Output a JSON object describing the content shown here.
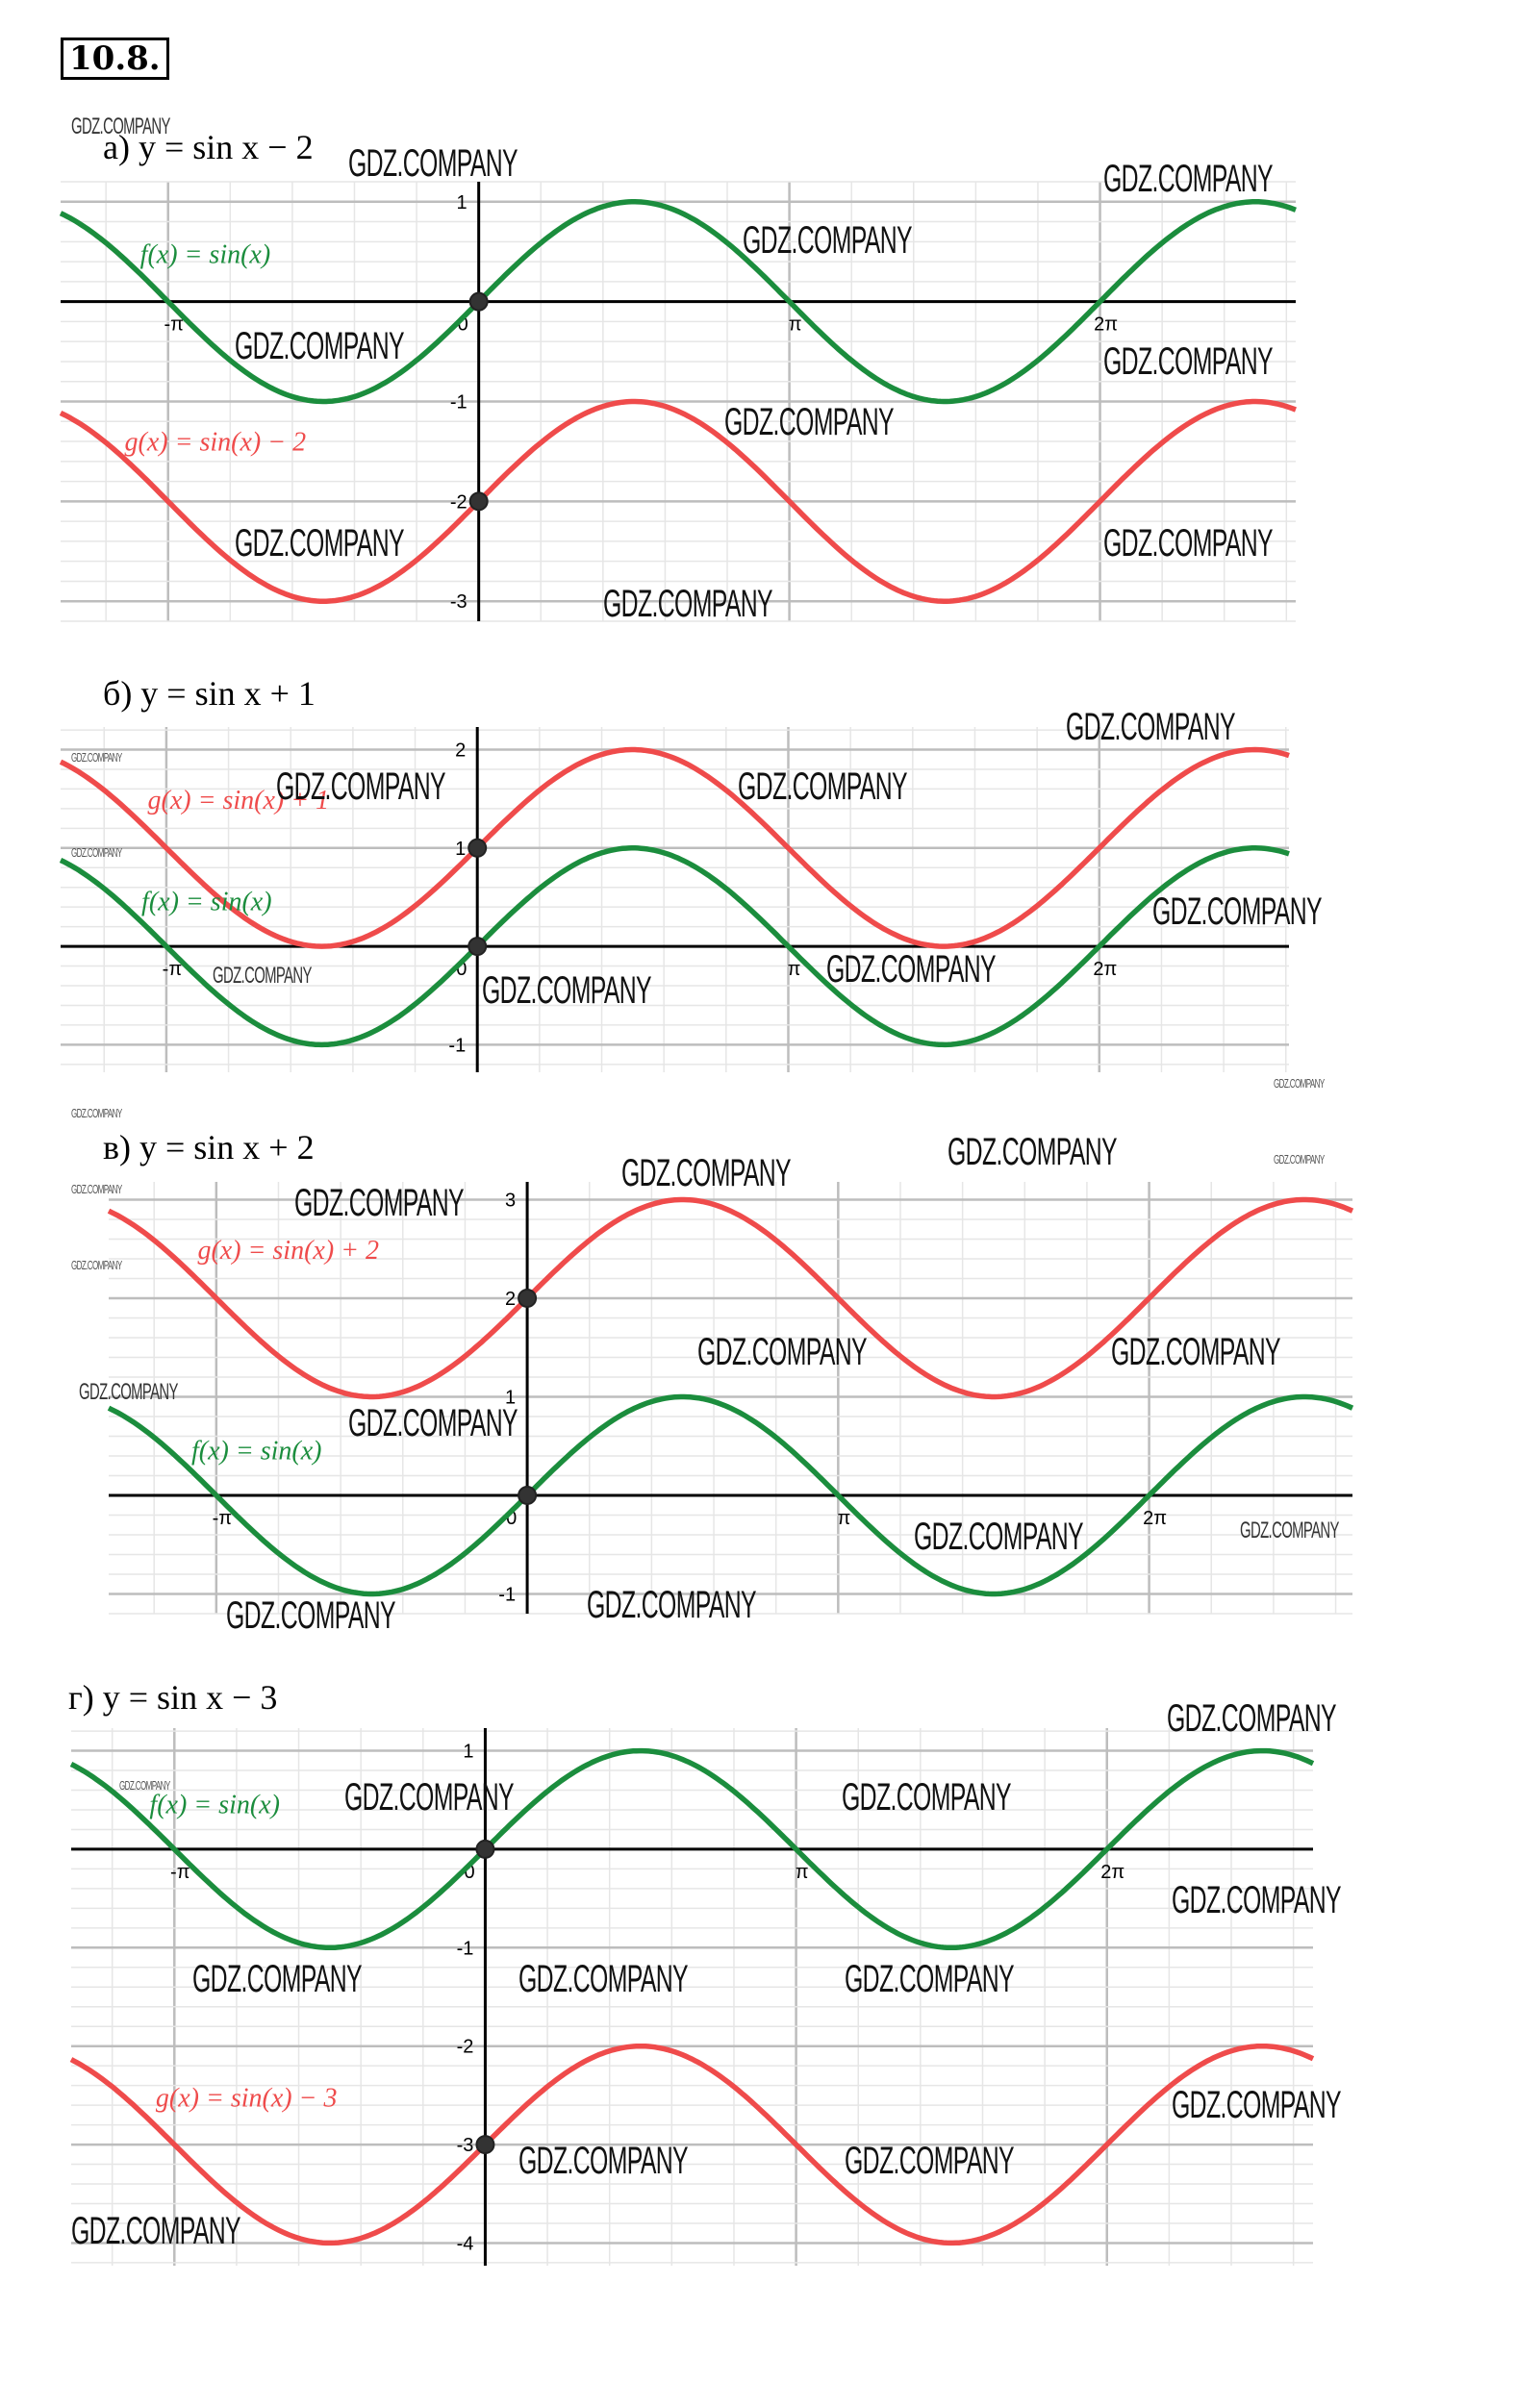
{
  "problem_number": "10.8.",
  "watermark": "GDZ.COMPANY",
  "colors": {
    "f": "#1b8d3d",
    "g": "#ef4b4b",
    "axis": "#000000",
    "grid_major": "#bdbdbd",
    "grid_minor": "#e6e6e6",
    "point": "#333333"
  },
  "chart_data": [
    {
      "type": "line",
      "title": "а) y = sin x − 2",
      "xlim_pi": [
        -1.346,
        2.63
      ],
      "ylim": [
        -3.2,
        1.2
      ],
      "x_ticks": [
        {
          "value_pi": -1,
          "label": "-π"
        },
        {
          "value_pi": 0,
          "label": "0"
        },
        {
          "value_pi": 1,
          "label": "π"
        },
        {
          "value_pi": 2,
          "label": "2π"
        }
      ],
      "y_ticks": [
        1,
        -1,
        -2,
        -3
      ],
      "grid": true,
      "series": [
        {
          "name": "f",
          "label": "f(x) = sin(x)",
          "shift": 0
        },
        {
          "name": "g",
          "label": "g(x) = sin(x) − 2",
          "shift": -2
        }
      ],
      "points": [
        {
          "x": 0,
          "y": 0
        },
        {
          "x": 0,
          "y": -2
        }
      ]
    },
    {
      "type": "line",
      "title": "б) y = sin x + 1",
      "xlim_pi": [
        -1.34,
        2.61
      ],
      "ylim": [
        -1.28,
        2.23
      ],
      "x_ticks": [
        {
          "value_pi": -1,
          "label": "-π"
        },
        {
          "value_pi": 0,
          "label": "0"
        },
        {
          "value_pi": 1,
          "label": "π"
        },
        {
          "value_pi": 2,
          "label": "2π"
        }
      ],
      "y_ticks": [
        2,
        1,
        -1
      ],
      "grid": true,
      "series": [
        {
          "name": "g",
          "label": "g(x) = sin(x) + 1",
          "shift": 1
        },
        {
          "name": "f",
          "label": "f(x) = sin(x)",
          "shift": 0
        }
      ],
      "points": [
        {
          "x": 0,
          "y": 1
        },
        {
          "x": 0,
          "y": 0
        }
      ]
    },
    {
      "type": "line",
      "title": "в) y = sin x + 2",
      "xlim_pi": [
        -1.346,
        2.654
      ],
      "ylim": [
        -1.2,
        3.18
      ],
      "x_ticks": [
        {
          "value_pi": -1,
          "label": "-π"
        },
        {
          "value_pi": 0,
          "label": "0"
        },
        {
          "value_pi": 1,
          "label": "π"
        },
        {
          "value_pi": 2,
          "label": "2π"
        }
      ],
      "y_ticks": [
        3,
        2,
        1,
        -1
      ],
      "grid": true,
      "series": [
        {
          "name": "g",
          "label": "g(x) = sin(x) + 2",
          "shift": 2
        },
        {
          "name": "f",
          "label": "f(x) = sin(x)",
          "shift": 0
        }
      ],
      "points": [
        {
          "x": 0,
          "y": 2
        },
        {
          "x": 0,
          "y": 0
        }
      ]
    },
    {
      "type": "line",
      "title": "г) y = sin x − 3",
      "xlim_pi": [
        -1.332,
        2.663
      ],
      "ylim": [
        -4.23,
        1.23
      ],
      "x_ticks": [
        {
          "value_pi": -1,
          "label": "-π"
        },
        {
          "value_pi": 0,
          "label": "0"
        },
        {
          "value_pi": 1,
          "label": "π"
        },
        {
          "value_pi": 2,
          "label": "2π"
        }
      ],
      "y_ticks": [
        1,
        -1,
        -2,
        -3,
        -4
      ],
      "grid": true,
      "series": [
        {
          "name": "f",
          "label": "f(x) = sin(x)",
          "shift": 0
        },
        {
          "name": "g",
          "label": "g(x) = sin(x) − 3",
          "shift": -3
        }
      ],
      "points": [
        {
          "x": 0,
          "y": 0
        },
        {
          "x": 0,
          "y": -3
        }
      ]
    }
  ]
}
